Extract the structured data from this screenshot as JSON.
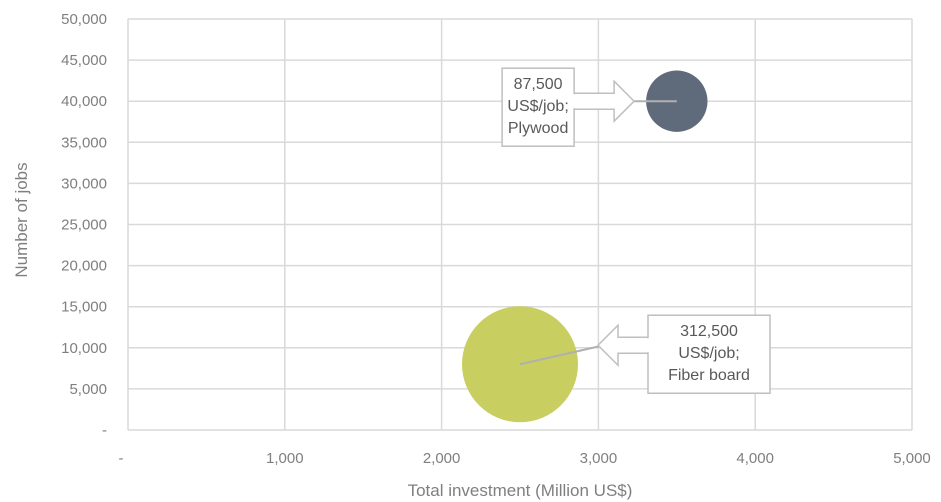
{
  "chart_data": {
    "type": "bubble",
    "xlabel": "Total investment (Million US$)",
    "ylabel": "Number of jobs",
    "xlim": [
      0,
      5000
    ],
    "ylim": [
      0,
      50000
    ],
    "x_ticks": [
      0,
      1000,
      2000,
      3000,
      4000,
      5000
    ],
    "x_tick_labels": [
      "-",
      "1,000",
      "2,000",
      "3,000",
      "4,000",
      "5,000"
    ],
    "y_ticks": [
      0,
      5000,
      10000,
      15000,
      20000,
      25000,
      30000,
      35000,
      40000,
      45000,
      50000
    ],
    "y_tick_labels": [
      "-",
      "5,000",
      "10,000",
      "15,000",
      "20,000",
      "25,000",
      "30,000",
      "35,000",
      "40,000",
      "45,000",
      "50,000"
    ],
    "grid": true,
    "points": [
      {
        "x": 3500,
        "y": 40000,
        "size": 87500,
        "label_lines": [
          "87,500",
          "US$/job;",
          "Plywood"
        ],
        "color": "#5f6b7a"
      },
      {
        "x": 2500,
        "y": 8000,
        "size": 312500,
        "label_lines": [
          "312,500",
          "US$/job;",
          "Fiber board"
        ],
        "color": "#c8ce5f"
      }
    ]
  }
}
